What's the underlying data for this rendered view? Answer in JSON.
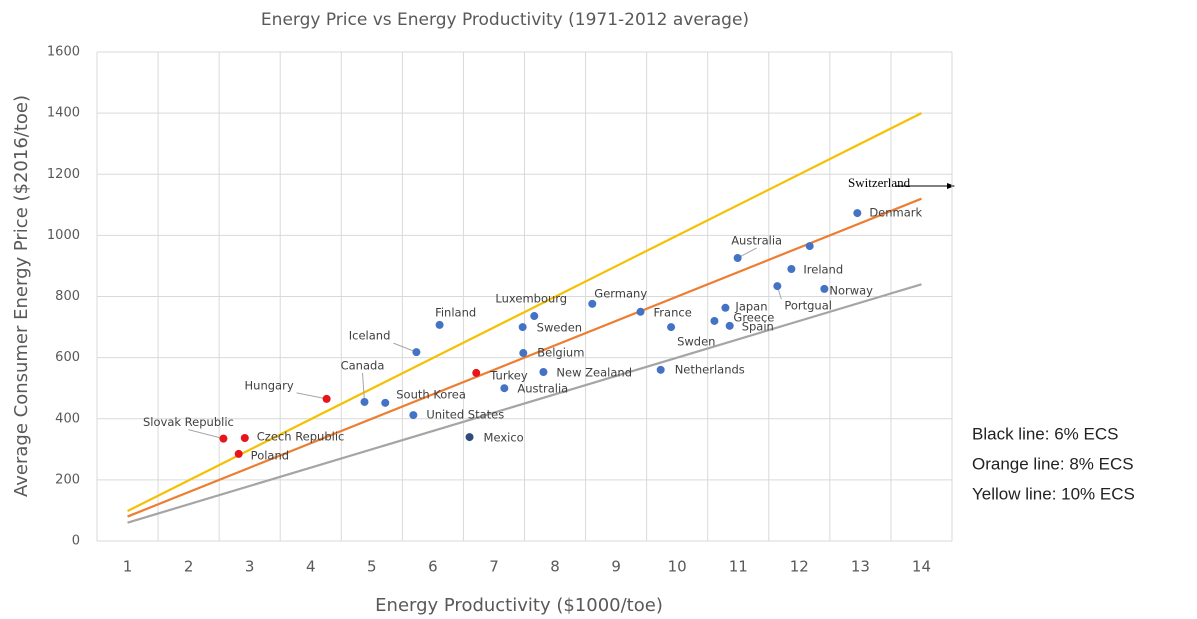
{
  "chart_data": {
    "type": "scatter",
    "title": "Energy Price vs Energy Productivity (1971-2012 average)",
    "x_label": "Energy Productivity ($1000/toe)",
    "y_label": "Average Consumer Energy Price ($2016/toe)",
    "xlim": [
      0.5,
      14.5
    ],
    "xticks": [
      1,
      2,
      3,
      4,
      5,
      6,
      7,
      8,
      9,
      10,
      11,
      12,
      13,
      14
    ],
    "ylim": [
      0,
      1600
    ],
    "yticks": [
      0,
      200,
      400,
      600,
      800,
      1000,
      1200,
      1400,
      1600
    ],
    "grid": true,
    "points": {
      "labels": [
        "Slovak Republic",
        "Czech Republic",
        "Poland",
        "Hungary",
        "Turkey",
        "Canada",
        "South Korea",
        "United States",
        "Iceland",
        "Finland",
        "Mexico",
        "Australia",
        "Luxembourg",
        "Sweden",
        "Belgium",
        "New Zealand",
        "Germany",
        "France",
        "Swden",
        "Netherlands",
        "Japan",
        "Greece",
        "Spain",
        "Australia",
        "Portgual",
        "Ireland",
        null,
        "Norway",
        "Denmark"
      ],
      "x": [
        2.57,
        2.92,
        2.82,
        4.26,
        6.71,
        4.88,
        5.22,
        5.68,
        5.73,
        6.11,
        6.6,
        7.17,
        7.66,
        7.47,
        7.48,
        7.81,
        8.61,
        9.4,
        9.9,
        9.73,
        10.79,
        10.61,
        10.86,
        10.99,
        11.64,
        11.87,
        12.17,
        12.41,
        12.95
      ],
      "values": [
        335,
        337,
        285,
        465,
        550,
        455,
        452,
        412,
        618,
        707,
        340,
        500,
        736,
        700,
        615,
        553,
        776,
        750,
        700,
        560,
        763,
        720,
        704,
        926,
        834,
        890,
        965,
        825,
        1073
      ],
      "colors": [
        "#e8141c",
        "#e8141c",
        "#e8141c",
        "#e8141c",
        "#e8141c",
        "#4472c4",
        "#4472c4",
        "#4472c4",
        "#4472c4",
        "#4472c4",
        "#2f4b7c",
        "#4472c4",
        "#4472c4",
        "#4472c4",
        "#4472c4",
        "#4472c4",
        "#4472c4",
        "#4472c4",
        "#4472c4",
        "#4472c4",
        "#4472c4",
        "#4472c4",
        "#4472c4",
        "#4472c4",
        "#4472c4",
        "#4472c4",
        "#4472c4",
        "#4472c4",
        "#4472c4"
      ]
    },
    "lines": [
      {
        "color": "#f5c000",
        "x": [
          1,
          14
        ],
        "values": [
          98,
          1400
        ]
      },
      {
        "color": "#ed7d31",
        "x": [
          1,
          14
        ],
        "values": [
          80,
          1120
        ]
      },
      {
        "color": "#a5a5a5",
        "x": [
          1,
          14
        ],
        "values": [
          60,
          840
        ]
      }
    ],
    "annotations": [
      "Switzerland",
      "Black line: 6% ECS",
      "Orange line: 8% ECS",
      "Yellow line: 10% ECS"
    ]
  }
}
